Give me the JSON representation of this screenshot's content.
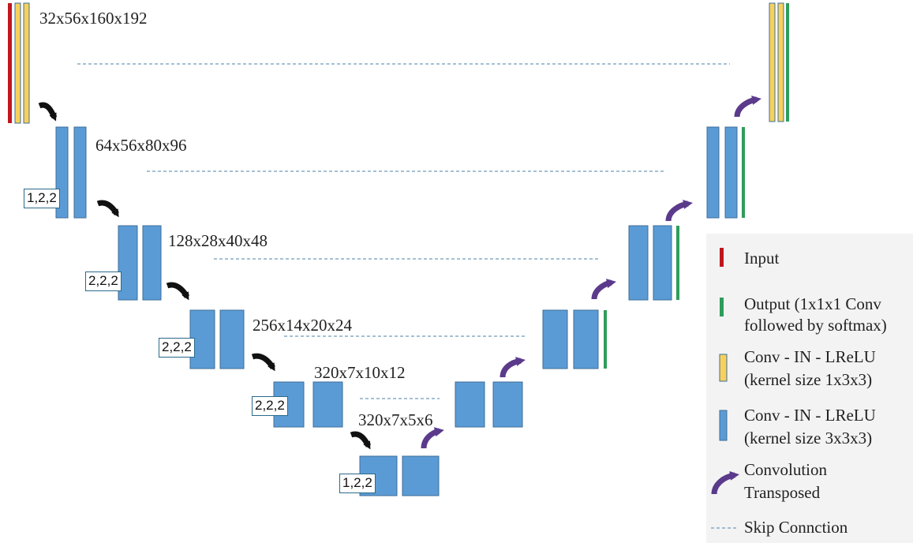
{
  "colors": {
    "input": "#c0171f",
    "output": "#2e9d5a",
    "conv_1x3x3": "#f8d15c",
    "conv_3x3x3": "#5b9bd5",
    "block_border": "#3d6e99",
    "conv_transposed": "#5b3a8c",
    "downsample_arrow": "#111111",
    "skip": "#6f9ab8"
  },
  "stages": [
    {
      "shape": "32x56x160x192"
    },
    {
      "shape": "64x56x80x96",
      "stride": "1,2,2"
    },
    {
      "shape": "128x28x40x48",
      "stride": "2,2,2"
    },
    {
      "shape": "256x14x20x24",
      "stride": "2,2,2"
    },
    {
      "shape": "320x7x10x12",
      "stride": "2,2,2"
    },
    {
      "shape": "320x7x5x6",
      "stride": "1,2,2"
    }
  ],
  "legend": {
    "input": "Input",
    "output_line1": "Output (1x1x1 Conv",
    "output_line2": "followed by softmax)",
    "conv133_line1": "Conv - IN - LReLU",
    "conv133_line2": "(kernel size 1x3x3)",
    "conv333_line1": "Conv - IN - LReLU",
    "conv333_line2": "(kernel size 3x3x3)",
    "transposed_line1": "Convolution",
    "transposed_line2": "Transposed",
    "skip": "Skip Connction"
  }
}
